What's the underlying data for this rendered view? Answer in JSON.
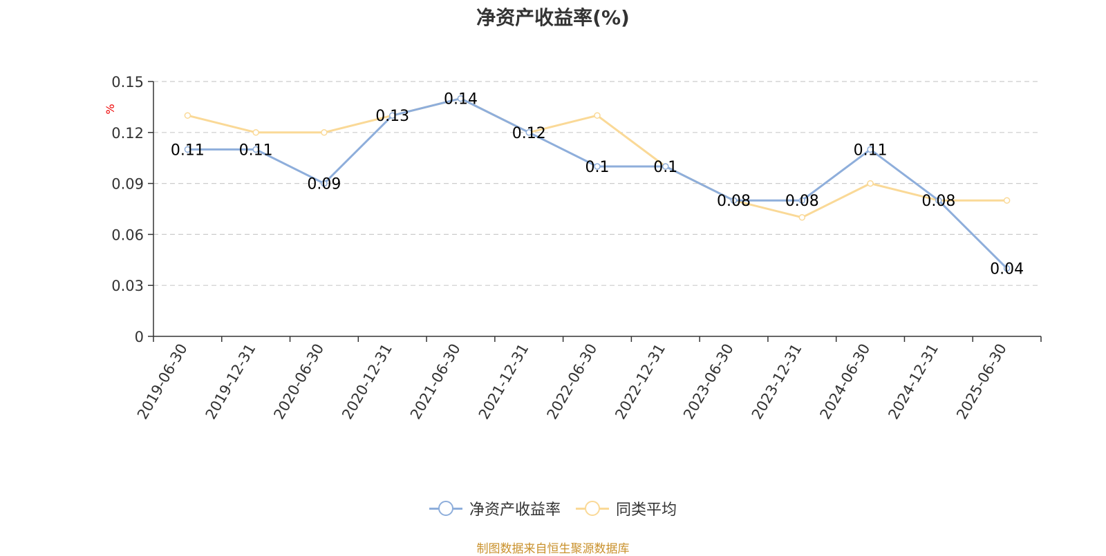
{
  "source_note": "制图数据来自恒生聚源数据库",
  "chart_data": {
    "type": "line",
    "title": "净资产收益率(%)",
    "ylabel": "%",
    "xlabel": "",
    "ylim": [
      0,
      0.15
    ],
    "yticks": [
      "0",
      "0.03",
      "0.06",
      "0.09",
      "0.12",
      "0.15"
    ],
    "grid": true,
    "legend_position": "bottom",
    "categories": [
      "2019-06-30",
      "2019-12-31",
      "2020-06-30",
      "2020-12-31",
      "2021-06-30",
      "2021-12-31",
      "2022-06-30",
      "2022-12-31",
      "2023-06-30",
      "2023-12-31",
      "2024-06-30",
      "2024-12-31",
      "2025-06-30"
    ],
    "series": [
      {
        "name": "净资产收益率",
        "color": "#8eaedb",
        "values": [
          0.11,
          0.11,
          0.09,
          0.13,
          0.14,
          0.12,
          0.1,
          0.1,
          0.08,
          0.08,
          0.11,
          0.08,
          0.04
        ],
        "labels": [
          "0.11",
          "0.11",
          "0.09",
          "0.13",
          "0.14",
          "0.12",
          "0.1",
          "0.1",
          "0.08",
          "0.08",
          "0.11",
          "0.08",
          "0.04"
        ]
      },
      {
        "name": "同类平均",
        "color": "#fad997",
        "values": [
          0.13,
          0.12,
          0.12,
          0.13,
          0.14,
          0.12,
          0.13,
          0.1,
          0.08,
          0.07,
          0.09,
          0.08,
          0.08
        ]
      }
    ]
  }
}
